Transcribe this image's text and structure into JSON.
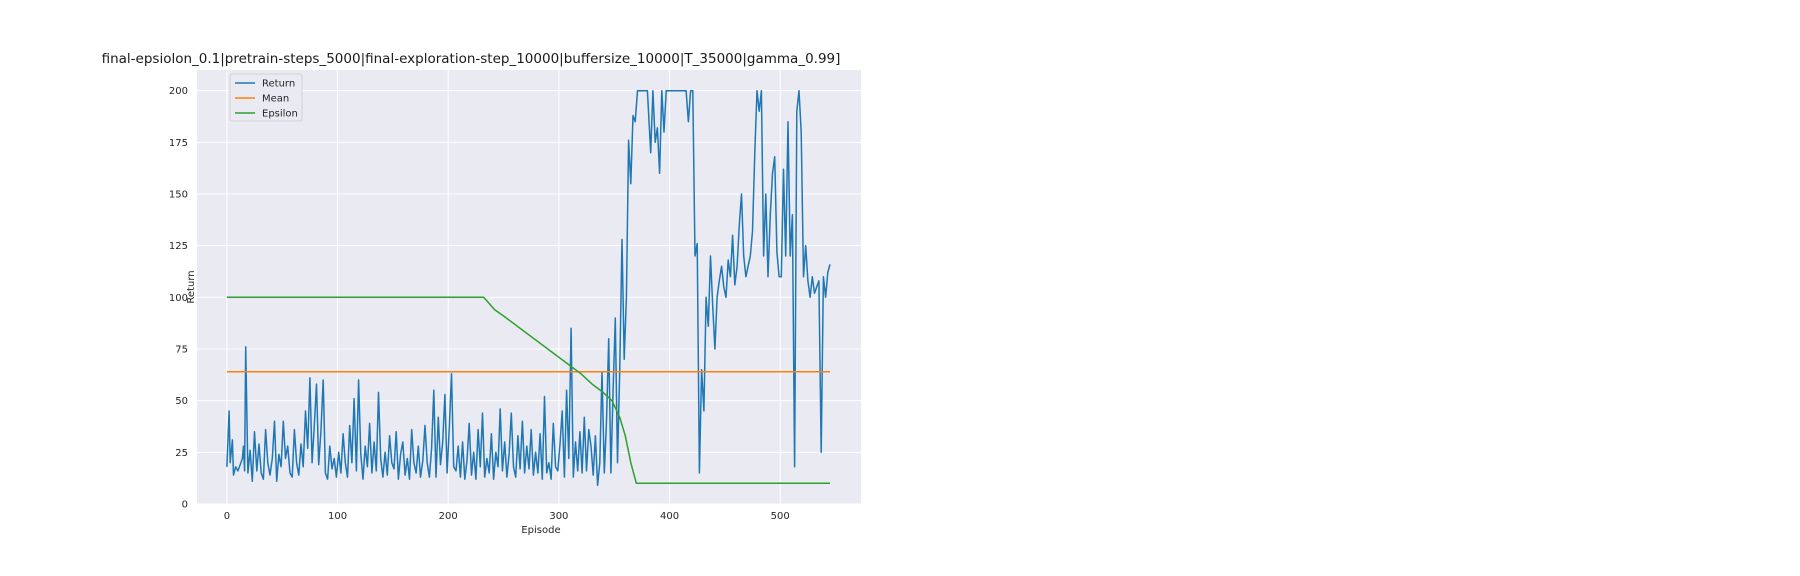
{
  "chart_data": {
    "type": "line",
    "title": "final-epsiolon_0.1|pretrain-steps_5000|final-exploration-step_10000|buffersize_10000|T_35000|gamma_0.99]",
    "xlabel": "Episode",
    "ylabel": "Return",
    "xlim": [
      -27,
      573
    ],
    "ylim": [
      0,
      210
    ],
    "xticks": [
      0,
      100,
      200,
      300,
      400,
      500
    ],
    "yticks": [
      0,
      25,
      50,
      75,
      100,
      125,
      150,
      175,
      200
    ],
    "grid": true,
    "legend_position": "upper-left",
    "legend": [
      "Return",
      "Mean",
      "Epsilon"
    ],
    "colors": {
      "Return": "#1f77b4",
      "Mean": "#ff7f0e",
      "Epsilon": "#2ca02c",
      "plot_bg": "#eaeaf2",
      "grid": "#ffffff"
    },
    "series": [
      {
        "name": "Return",
        "points": [
          [
            0,
            18
          ],
          [
            2,
            45
          ],
          [
            3,
            20
          ],
          [
            5,
            31
          ],
          [
            6,
            14
          ],
          [
            8,
            18
          ],
          [
            10,
            16
          ],
          [
            12,
            19
          ],
          [
            14,
            22
          ],
          [
            15,
            28
          ],
          [
            16,
            16
          ],
          [
            17,
            76
          ],
          [
            19,
            15
          ],
          [
            21,
            26
          ],
          [
            23,
            11
          ],
          [
            25,
            35
          ],
          [
            27,
            16
          ],
          [
            29,
            29
          ],
          [
            31,
            15
          ],
          [
            33,
            12
          ],
          [
            35,
            36
          ],
          [
            37,
            20
          ],
          [
            39,
            14
          ],
          [
            41,
            22
          ],
          [
            43,
            40
          ],
          [
            45,
            11
          ],
          [
            47,
            24
          ],
          [
            49,
            18
          ],
          [
            51,
            40
          ],
          [
            53,
            22
          ],
          [
            55,
            28
          ],
          [
            57,
            15
          ],
          [
            59,
            13
          ],
          [
            61,
            36
          ],
          [
            63,
            20
          ],
          [
            65,
            14
          ],
          [
            67,
            29
          ],
          [
            69,
            18
          ],
          [
            71,
            45
          ],
          [
            73,
            27
          ],
          [
            75,
            61
          ],
          [
            77,
            20
          ],
          [
            79,
            38
          ],
          [
            81,
            58
          ],
          [
            83,
            19
          ],
          [
            85,
            35
          ],
          [
            87,
            60
          ],
          [
            89,
            15
          ],
          [
            91,
            12
          ],
          [
            93,
            28
          ],
          [
            95,
            17
          ],
          [
            97,
            22
          ],
          [
            99,
            13
          ],
          [
            101,
            25
          ],
          [
            103,
            15
          ],
          [
            105,
            34
          ],
          [
            107,
            20
          ],
          [
            109,
            13
          ],
          [
            111,
            38
          ],
          [
            113,
            20
          ],
          [
            115,
            51
          ],
          [
            117,
            16
          ],
          [
            119,
            60
          ],
          [
            121,
            24
          ],
          [
            123,
            12
          ],
          [
            125,
            28
          ],
          [
            127,
            18
          ],
          [
            129,
            39
          ],
          [
            131,
            15
          ],
          [
            133,
            30
          ],
          [
            135,
            16
          ],
          [
            137,
            54
          ],
          [
            139,
            22
          ],
          [
            141,
            13
          ],
          [
            143,
            25
          ],
          [
            145,
            14
          ],
          [
            147,
            33
          ],
          [
            149,
            20
          ],
          [
            151,
            17
          ],
          [
            153,
            35
          ],
          [
            155,
            12
          ],
          [
            157,
            24
          ],
          [
            159,
            30
          ],
          [
            161,
            14
          ],
          [
            163,
            22
          ],
          [
            165,
            12
          ],
          [
            167,
            36
          ],
          [
            169,
            20
          ],
          [
            171,
            15
          ],
          [
            173,
            28
          ],
          [
            175,
            13
          ],
          [
            177,
            21
          ],
          [
            179,
            38
          ],
          [
            181,
            20
          ],
          [
            183,
            13
          ],
          [
            185,
            27
          ],
          [
            187,
            55
          ],
          [
            189,
            13
          ],
          [
            191,
            42
          ],
          [
            193,
            19
          ],
          [
            195,
            30
          ],
          [
            197,
            53
          ],
          [
            199,
            15
          ],
          [
            201,
            37
          ],
          [
            203,
            63
          ],
          [
            205,
            18
          ],
          [
            207,
            16
          ],
          [
            209,
            28
          ],
          [
            211,
            13
          ],
          [
            213,
            30
          ],
          [
            215,
            12
          ],
          [
            217,
            21
          ],
          [
            219,
            39
          ],
          [
            221,
            14
          ],
          [
            223,
            25
          ],
          [
            225,
            12
          ],
          [
            227,
            36
          ],
          [
            229,
            18
          ],
          [
            231,
            44
          ],
          [
            233,
            13
          ],
          [
            235,
            22
          ],
          [
            237,
            15
          ],
          [
            239,
            34
          ],
          [
            241,
            12
          ],
          [
            243,
            25
          ],
          [
            245,
            18
          ],
          [
            247,
            46
          ],
          [
            249,
            16
          ],
          [
            251,
            30
          ],
          [
            253,
            13
          ],
          [
            255,
            24
          ],
          [
            257,
            44
          ],
          [
            259,
            18
          ],
          [
            261,
            13
          ],
          [
            263,
            33
          ],
          [
            265,
            17
          ],
          [
            267,
            40
          ],
          [
            269,
            15
          ],
          [
            271,
            28
          ],
          [
            273,
            17
          ],
          [
            275,
            36
          ],
          [
            277,
            14
          ],
          [
            279,
            25
          ],
          [
            281,
            15
          ],
          [
            283,
            34
          ],
          [
            285,
            12
          ],
          [
            287,
            52
          ],
          [
            289,
            15
          ],
          [
            291,
            20
          ],
          [
            293,
            12
          ],
          [
            295,
            39
          ],
          [
            297,
            18
          ],
          [
            299,
            16
          ],
          [
            301,
            29
          ],
          [
            303,
            45
          ],
          [
            305,
            13
          ],
          [
            307,
            55
          ],
          [
            309,
            22
          ],
          [
            311,
            85
          ],
          [
            313,
            13
          ],
          [
            315,
            30
          ],
          [
            317,
            16
          ],
          [
            319,
            35
          ],
          [
            321,
            15
          ],
          [
            323,
            42
          ],
          [
            325,
            16
          ],
          [
            327,
            36
          ],
          [
            329,
            28
          ],
          [
            331,
            14
          ],
          [
            333,
            33
          ],
          [
            335,
            9
          ],
          [
            337,
            20
          ],
          [
            339,
            64
          ],
          [
            341,
            15
          ],
          [
            343,
            40
          ],
          [
            345,
            80
          ],
          [
            347,
            15
          ],
          [
            349,
            55
          ],
          [
            351,
            90
          ],
          [
            353,
            20
          ],
          [
            355,
            64
          ],
          [
            357,
            128
          ],
          [
            359,
            70
          ],
          [
            361,
            100
          ],
          [
            363,
            176
          ],
          [
            365,
            155
          ],
          [
            367,
            188
          ],
          [
            369,
            185
          ],
          [
            371,
            200
          ],
          [
            374,
            200
          ],
          [
            377,
            200
          ],
          [
            380,
            200
          ],
          [
            383,
            170
          ],
          [
            385,
            200
          ],
          [
            387,
            175
          ],
          [
            389,
            182
          ],
          [
            391,
            160
          ],
          [
            393,
            200
          ],
          [
            395,
            180
          ],
          [
            397,
            200
          ],
          [
            400,
            200
          ],
          [
            403,
            200
          ],
          [
            406,
            200
          ],
          [
            409,
            200
          ],
          [
            412,
            200
          ],
          [
            415,
            200
          ],
          [
            417,
            185
          ],
          [
            419,
            200
          ],
          [
            421,
            200
          ],
          [
            423,
            120
          ],
          [
            425,
            126
          ],
          [
            427,
            15
          ],
          [
            429,
            65
          ],
          [
            431,
            45
          ],
          [
            433,
            100
          ],
          [
            435,
            86
          ],
          [
            437,
            120
          ],
          [
            439,
            96
          ],
          [
            441,
            75
          ],
          [
            443,
            100
          ],
          [
            445,
            108
          ],
          [
            447,
            115
          ],
          [
            449,
            105
          ],
          [
            451,
            100
          ],
          [
            453,
            118
          ],
          [
            455,
            110
          ],
          [
            457,
            130
          ],
          [
            459,
            106
          ],
          [
            461,
            115
          ],
          [
            463,
            135
          ],
          [
            465,
            150
          ],
          [
            467,
            120
          ],
          [
            469,
            110
          ],
          [
            471,
            115
          ],
          [
            473,
            120
          ],
          [
            475,
            132
          ],
          [
            477,
            170
          ],
          [
            479,
            200
          ],
          [
            481,
            190
          ],
          [
            483,
            200
          ],
          [
            485,
            120
          ],
          [
            487,
            150
          ],
          [
            489,
            110
          ],
          [
            491,
            140
          ],
          [
            493,
            160
          ],
          [
            495,
            168
          ],
          [
            497,
            122
          ],
          [
            499,
            110
          ],
          [
            501,
            110
          ],
          [
            503,
            162
          ],
          [
            505,
            120
          ],
          [
            507,
            185
          ],
          [
            509,
            120
          ],
          [
            511,
            140
          ],
          [
            513,
            18
          ],
          [
            515,
            190
          ],
          [
            517,
            200
          ],
          [
            519,
            180
          ],
          [
            521,
            110
          ],
          [
            523,
            125
          ],
          [
            525,
            108
          ],
          [
            527,
            100
          ],
          [
            529,
            110
          ],
          [
            531,
            102
          ],
          [
            533,
            105
          ],
          [
            535,
            108
          ],
          [
            537,
            25
          ],
          [
            539,
            110
          ],
          [
            541,
            100
          ],
          [
            543,
            112
          ],
          [
            545,
            116
          ]
        ]
      },
      {
        "name": "Mean",
        "points": [
          [
            0,
            64
          ],
          [
            545,
            64
          ]
        ]
      },
      {
        "name": "Epsilon",
        "points": [
          [
            0,
            100
          ],
          [
            232,
            100
          ],
          [
            237,
            97
          ],
          [
            242,
            94
          ],
          [
            250,
            91
          ],
          [
            260,
            87
          ],
          [
            270,
            83
          ],
          [
            280,
            79
          ],
          [
            290,
            75
          ],
          [
            300,
            71
          ],
          [
            310,
            67
          ],
          [
            320,
            63
          ],
          [
            330,
            58
          ],
          [
            340,
            54
          ],
          [
            348,
            50
          ],
          [
            355,
            42
          ],
          [
            360,
            33
          ],
          [
            365,
            20
          ],
          [
            370,
            10
          ],
          [
            545,
            10
          ]
        ]
      }
    ]
  }
}
